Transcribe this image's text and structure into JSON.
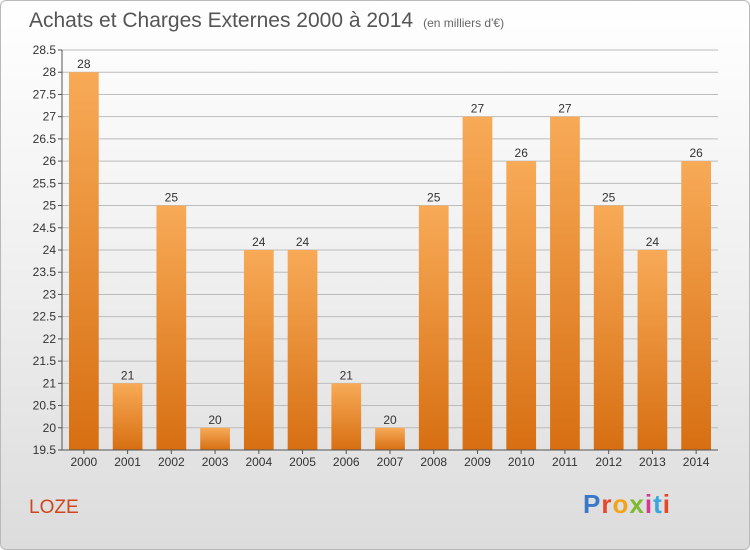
{
  "title": "Achats et Charges Externes 2000 à 2014",
  "subtitle": "(en milliers d'€)",
  "commune": "LOZE",
  "logo": {
    "letters": [
      "P",
      "r",
      "o",
      "x",
      "i",
      "t",
      "i"
    ],
    "colors": [
      "#3a78c9",
      "#e7462a",
      "#f1a31b",
      "#7dbb2f",
      "#d43a8e",
      "#3aa6de",
      "#e7462a"
    ]
  },
  "colors": {
    "bar_top": "#f8aa57",
    "bar_bottom": "#d76f12",
    "grid": "#bcbcbc"
  },
  "chart_data": {
    "type": "bar",
    "title": "Achats et Charges Externes 2000 à 2014",
    "subtitle": "(en milliers d'€)",
    "categories": [
      "2000",
      "2001",
      "2002",
      "2003",
      "2004",
      "2005",
      "2006",
      "2007",
      "2008",
      "2009",
      "2010",
      "2011",
      "2012",
      "2013",
      "2014"
    ],
    "values": [
      28,
      21,
      25,
      20,
      24,
      24,
      21,
      20,
      25,
      27,
      26,
      27,
      25,
      24,
      26
    ],
    "ylim": [
      19.5,
      28.5
    ],
    "yticks": [
      "19.5",
      "20",
      "20.5",
      "21",
      "21.5",
      "22",
      "22.5",
      "23",
      "23.5",
      "24",
      "24.5",
      "25",
      "25.5",
      "26",
      "26.5",
      "27",
      "27.5",
      "28",
      "28.5"
    ],
    "grid": true
  }
}
